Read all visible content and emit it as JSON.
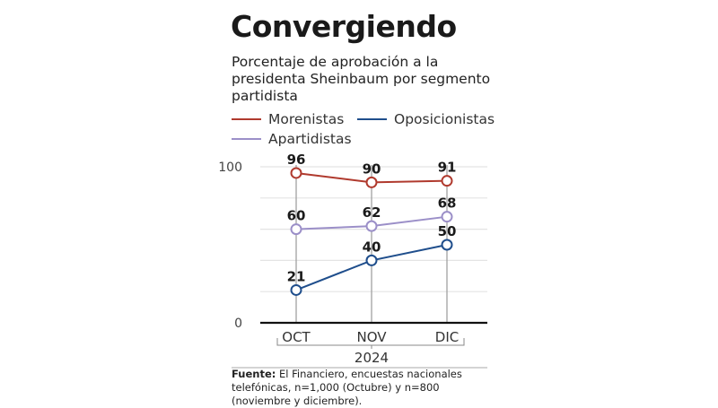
{
  "title": "Convergiendo",
  "subtitle": "Porcentaje de aprobación a la presidenta Sheinbaum por segmento partidista",
  "legend": [
    {
      "name": "Morenistas",
      "color": "#b03a2e"
    },
    {
      "name": "Oposicionistas",
      "color": "#1f4e8c"
    },
    {
      "name": "Apartidistas",
      "color": "#9b8fc8"
    }
  ],
  "source": {
    "label": "Fuente:",
    "text": " El Financiero, encuestas nacionales telefónicas, n=1,000 (Octubre) y n=800 (noviembre y diciembre)."
  },
  "chart_data": {
    "type": "line",
    "title": "Convergiendo",
    "subtitle": "Porcentaje de aprobación a la presidenta Sheinbaum por segmento partidista",
    "categories": [
      "OCT",
      "NOV",
      "DIC"
    ],
    "x_group_label": "2024",
    "xlabel": "",
    "ylabel": "",
    "ylim": [
      0,
      100
    ],
    "y_ticks_labeled": [
      0,
      100
    ],
    "gridlines": [
      20,
      40,
      60,
      80,
      100
    ],
    "grid": true,
    "legend_position": "top-left",
    "series": [
      {
        "name": "Morenistas",
        "color": "#b03a2e",
        "values": [
          96,
          90,
          91
        ]
      },
      {
        "name": "Apartidistas",
        "color": "#9b8fc8",
        "values": [
          60,
          62,
          68
        ]
      },
      {
        "name": "Oposicionistas",
        "color": "#1f4e8c",
        "values": [
          21,
          40,
          50
        ]
      }
    ]
  }
}
